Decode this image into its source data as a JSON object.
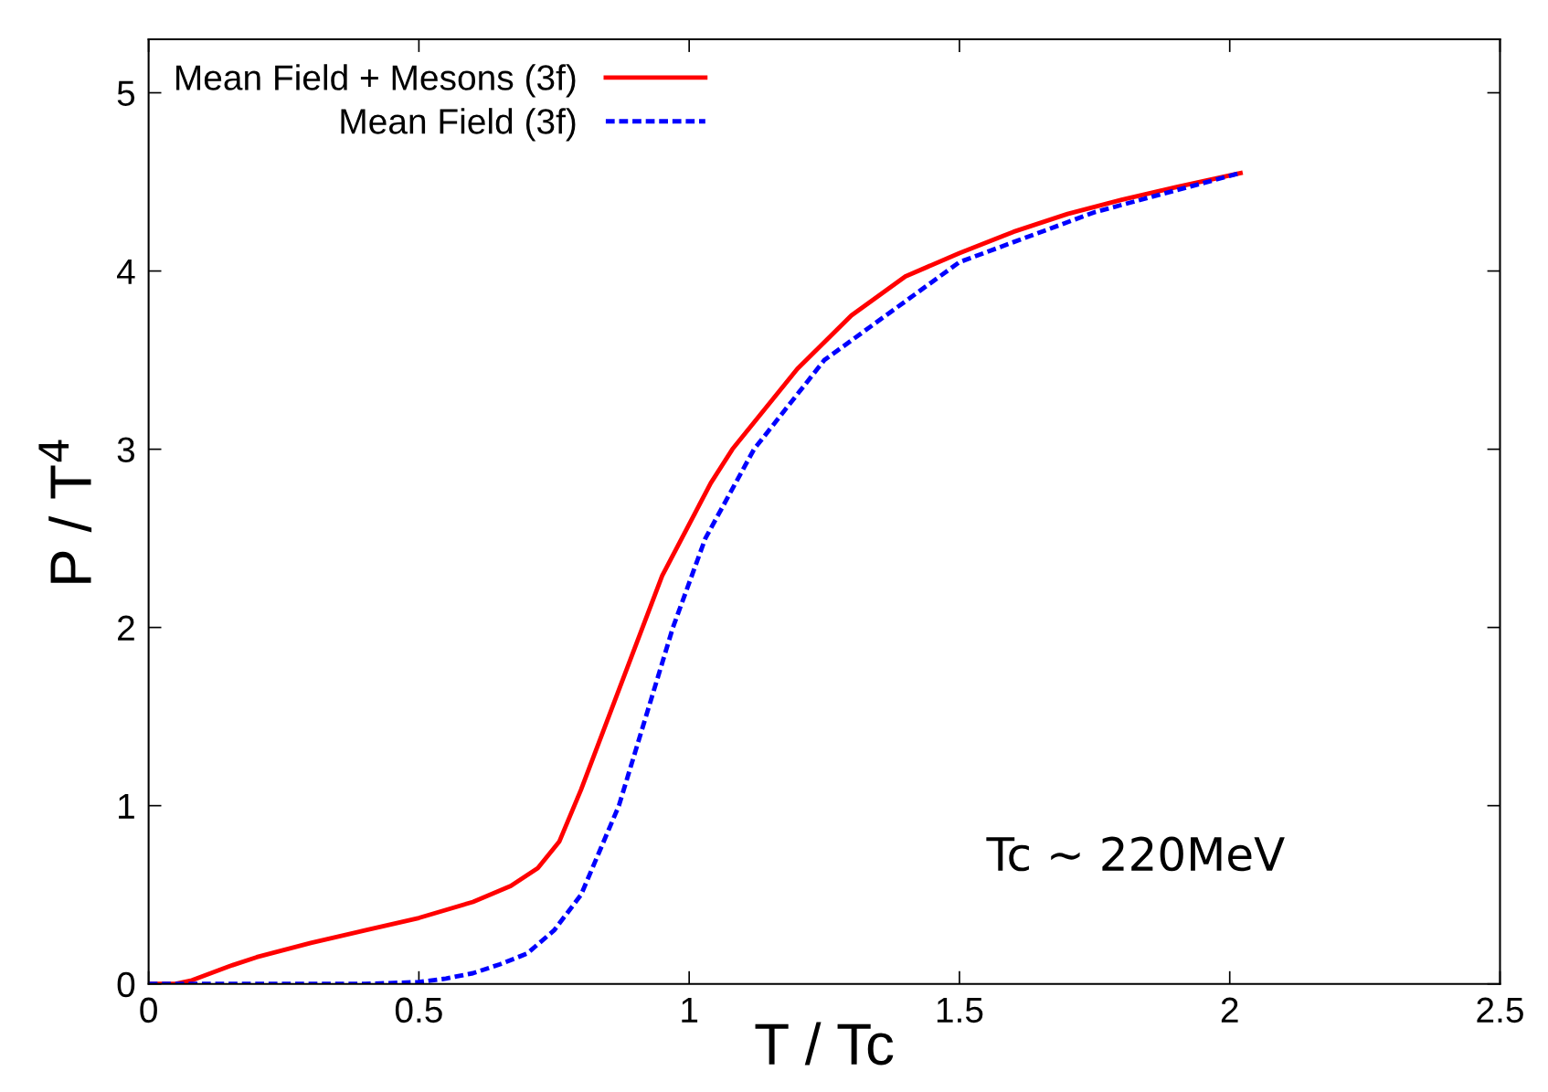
{
  "chart_data": {
    "type": "line",
    "xlabel": "T / Tc",
    "ylabel": "P / T$^{4}$",
    "xlim": [
      0,
      2.5
    ],
    "ylim": [
      0,
      5.3
    ],
    "xticks": [
      0,
      0.5,
      1,
      1.5,
      2,
      2.5
    ],
    "yticks": [
      0,
      1,
      2,
      3,
      4,
      5
    ],
    "grid": false,
    "legend": "top left",
    "annotations": [
      "Tc ∼ 220MeV"
    ],
    "series": [
      {
        "name": "Mean Field + Mesons (3f)",
        "color": "#ff0000",
        "line_style": "solid",
        "x": [
          0,
          0.05,
          0.08,
          0.15,
          0.2,
          0.3,
          0.4,
          0.5,
          0.6,
          0.67,
          0.72,
          0.76,
          0.8,
          0.95,
          1.04,
          1.08,
          1.2,
          1.3,
          1.4,
          1.5,
          1.6,
          1.7,
          1.8,
          1.9,
          2.02
        ],
        "values": [
          0,
          0,
          0.02,
          0.1,
          0.15,
          0.23,
          0.3,
          0.37,
          0.46,
          0.55,
          0.65,
          0.8,
          1.09,
          2.29,
          2.81,
          3.0,
          3.45,
          3.75,
          3.97,
          4.1,
          4.22,
          4.32,
          4.4,
          4.47,
          4.55
        ]
      },
      {
        "name": "Mean Field (3f)",
        "color": "#0000ff",
        "line_style": "dashed",
        "x": [
          0,
          0.4,
          0.5,
          0.55,
          0.6,
          0.65,
          0.7,
          0.75,
          0.8,
          0.87,
          0.97,
          1.03,
          1.12,
          1.25,
          1.5,
          1.75,
          2.02
        ],
        "values": [
          0,
          0,
          0.01,
          0.03,
          0.06,
          0.11,
          0.17,
          0.3,
          0.5,
          1.0,
          2.0,
          2.5,
          3.0,
          3.5,
          4.05,
          4.33,
          4.55
        ]
      }
    ]
  }
}
